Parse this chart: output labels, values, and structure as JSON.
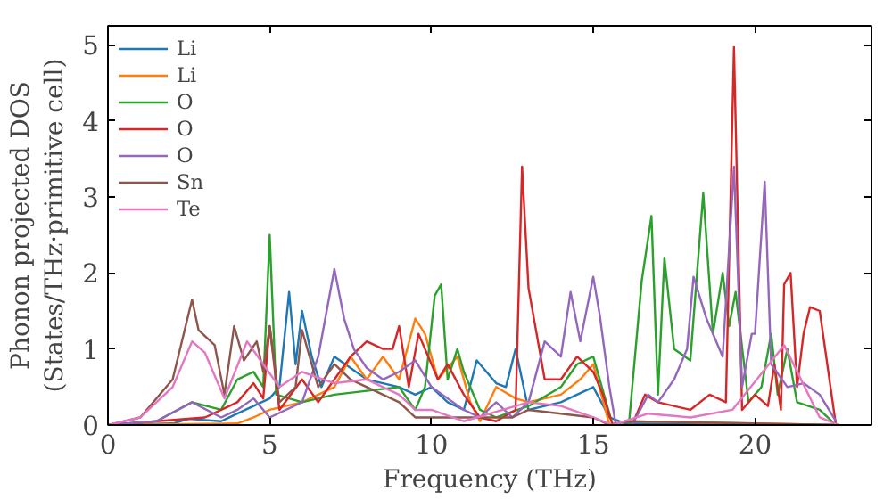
{
  "chart_data": {
    "type": "line",
    "xlabel": "Frequency (THz)",
    "ylabel": "Phonon projected DOS\n(States/THz·primitive cell)",
    "xlim": [
      0,
      23.6
    ],
    "ylim": [
      0,
      5.25
    ],
    "xticks": [
      0,
      5,
      10,
      15,
      20
    ],
    "yticks": [
      0,
      1,
      2,
      3,
      4,
      5
    ],
    "legend": "top left",
    "grid": false,
    "series": [
      {
        "name": "Li",
        "color": "#1f77b4",
        "x": [
          0,
          2,
          2.5,
          3.5,
          4,
          5,
          5.3,
          5.6,
          5.8,
          6.0,
          6.3,
          6.6,
          7,
          8,
          9,
          9.5,
          10,
          10.5,
          11,
          11.4,
          12,
          12.3,
          12.6,
          13,
          14,
          15,
          15.5,
          16,
          22.6
        ],
        "values": [
          0,
          0.02,
          0.08,
          0.05,
          0.15,
          0.35,
          0.5,
          1.75,
          0.8,
          1.5,
          0.9,
          0.5,
          0.9,
          0.6,
          0.5,
          0.4,
          0.5,
          0.3,
          0.2,
          0.85,
          0.55,
          0.5,
          1.0,
          0.2,
          0.3,
          0.5,
          0.1,
          0.02,
          0
        ]
      },
      {
        "name": "Li",
        "color": "#ff7f0e",
        "x": [
          0,
          4,
          4.5,
          5,
          6,
          7,
          7.5,
          8,
          8.5,
          9,
          9.5,
          9.8,
          10.2,
          10.8,
          11.2,
          11.5,
          12,
          12.6,
          13,
          14,
          14.6,
          15,
          15.5,
          16,
          22.6
        ],
        "values": [
          0,
          0.02,
          0.1,
          0.2,
          0.3,
          0.5,
          0.9,
          0.6,
          0.9,
          0.6,
          1.4,
          1.2,
          0.6,
          0.9,
          0.3,
          0.05,
          0.5,
          0.35,
          0.3,
          0.4,
          0.6,
          0.8,
          0,
          0.05,
          0
        ]
      },
      {
        "name": "O",
        "color": "#2ca02c",
        "x": [
          0,
          1.5,
          2.6,
          3.5,
          4,
          4.5,
          4.8,
          5.0,
          5.2,
          6,
          7,
          8,
          9,
          9.5,
          9.8,
          10.1,
          10.3,
          10.5,
          10.8,
          11,
          11.5,
          12,
          13,
          14,
          14.5,
          15,
          15.6,
          16.1,
          16.5,
          16.8,
          17.0,
          17.2,
          17.5,
          18,
          18.4,
          18.7,
          19.0,
          19.2,
          19.4,
          19.8,
          20.2,
          20.5,
          20.7,
          21.0,
          21.3,
          22,
          22.5
        ],
        "values": [
          0,
          0.05,
          0.3,
          0.2,
          0.6,
          0.7,
          0.5,
          2.5,
          0.4,
          0.3,
          0.4,
          0.45,
          0.5,
          0.2,
          0.5,
          1.7,
          1.85,
          0.6,
          1.0,
          0.7,
          0.2,
          0.1,
          0.25,
          0.5,
          0.8,
          0.9,
          0,
          0,
          1.9,
          2.75,
          0.4,
          2.2,
          1.0,
          0.85,
          3.05,
          1.2,
          2.0,
          1.3,
          1.75,
          0.3,
          0.5,
          1.2,
          0.4,
          1.0,
          0.3,
          0.2,
          0
        ]
      },
      {
        "name": "O",
        "color": "#d62728",
        "x": [
          0,
          3,
          4,
          4.5,
          4.8,
          5.0,
          5.3,
          6,
          6.5,
          7,
          7.5,
          8,
          8.5,
          8.8,
          9.0,
          9.3,
          9.6,
          10.2,
          10.5,
          11,
          11.5,
          12,
          12.6,
          12.8,
          13.0,
          13.5,
          14,
          14.5,
          15,
          15.3,
          15.6,
          16.2,
          16.6,
          17,
          18,
          18.6,
          19.1,
          19.35,
          19.6,
          20.0,
          20.4,
          20.6,
          20.8,
          20.9,
          21.1,
          21.3,
          21.5,
          21.7,
          22.0,
          22.5
        ],
        "values": [
          0,
          0.1,
          0.3,
          0.55,
          0.35,
          1.3,
          0.2,
          0.6,
          0.3,
          0.6,
          0.9,
          1.1,
          1.0,
          1.0,
          1.3,
          0.5,
          1.2,
          0.6,
          0.8,
          0.4,
          0.1,
          0.05,
          0.2,
          3.4,
          1.8,
          0.6,
          0.6,
          0.9,
          0.7,
          0.4,
          0,
          0,
          0.4,
          0.3,
          0.2,
          0.4,
          0.3,
          4.97,
          0.2,
          0.4,
          0.25,
          0.8,
          0.2,
          1.85,
          2.0,
          0.5,
          1.2,
          1.55,
          1.5,
          0
        ]
      },
      {
        "name": "O",
        "color": "#9467bd",
        "x": [
          0,
          1.5,
          2.6,
          3.5,
          4,
          4.5,
          5,
          6,
          6.5,
          7.0,
          7.3,
          7.6,
          8,
          8.5,
          9,
          9.5,
          10,
          10.5,
          11,
          11.5,
          12,
          12.5,
          13,
          13.5,
          14,
          14.3,
          14.6,
          15.0,
          15.2,
          15.5,
          15.7,
          16.2,
          16.7,
          17,
          17.5,
          17.9,
          18.1,
          18.5,
          19,
          19.35,
          19.6,
          19.9,
          20.0,
          20.3,
          20.5,
          21,
          21.5,
          22,
          22.5
        ],
        "values": [
          0,
          0.05,
          0.3,
          0.1,
          0.2,
          0.35,
          0.1,
          0.3,
          0.9,
          2.05,
          1.4,
          1.0,
          0.75,
          0.6,
          0.7,
          0.85,
          0.5,
          0.35,
          0.2,
          0.1,
          0.3,
          0.1,
          0.3,
          1.1,
          0.9,
          1.75,
          1.1,
          1.95,
          1.45,
          0.5,
          0,
          0,
          0.4,
          0.3,
          0.6,
          1.0,
          1.95,
          1.4,
          0.9,
          3.4,
          0.5,
          1.2,
          1.2,
          3.2,
          0.8,
          0.5,
          0.55,
          0.4,
          0.05
        ]
      },
      {
        "name": "Sn",
        "color": "#8c564b",
        "x": [
          0,
          1,
          2,
          2.6,
          2.8,
          3.3,
          3.6,
          3.9,
          4.2,
          4.6,
          4.8,
          5.0,
          5.3,
          5.8,
          6.0,
          6.5,
          7.0,
          7.5,
          8,
          8.5,
          9,
          9.5,
          12.5,
          13,
          14,
          15,
          15.5,
          16,
          22.6
        ],
        "values": [
          0,
          0.1,
          0.6,
          1.65,
          1.25,
          1.05,
          0.4,
          1.3,
          0.85,
          1.1,
          0.7,
          1.3,
          0.3,
          0.5,
          1.25,
          0.5,
          0.8,
          0.6,
          0.5,
          0.4,
          0.3,
          0.1,
          0.1,
          0.2,
          0.15,
          0.1,
          0,
          0.05,
          0
        ]
      },
      {
        "name": "Te",
        "color": "#e377c2",
        "x": [
          0,
          1,
          2,
          2.6,
          3,
          3.6,
          4.3,
          4.8,
          5.3,
          6,
          7,
          8,
          9,
          9.5,
          10,
          11,
          13,
          14,
          15,
          15.6,
          16.7,
          18,
          19.3,
          20.9,
          22,
          22.6
        ],
        "values": [
          0,
          0.1,
          0.5,
          1.1,
          0.95,
          0.35,
          1.1,
          0.8,
          0.5,
          0.7,
          0.55,
          0.6,
          0.4,
          0.2,
          0.2,
          0.05,
          0.3,
          0.25,
          0.1,
          0,
          0.15,
          0.1,
          0.2,
          1.05,
          0.1,
          0
        ]
      }
    ]
  }
}
